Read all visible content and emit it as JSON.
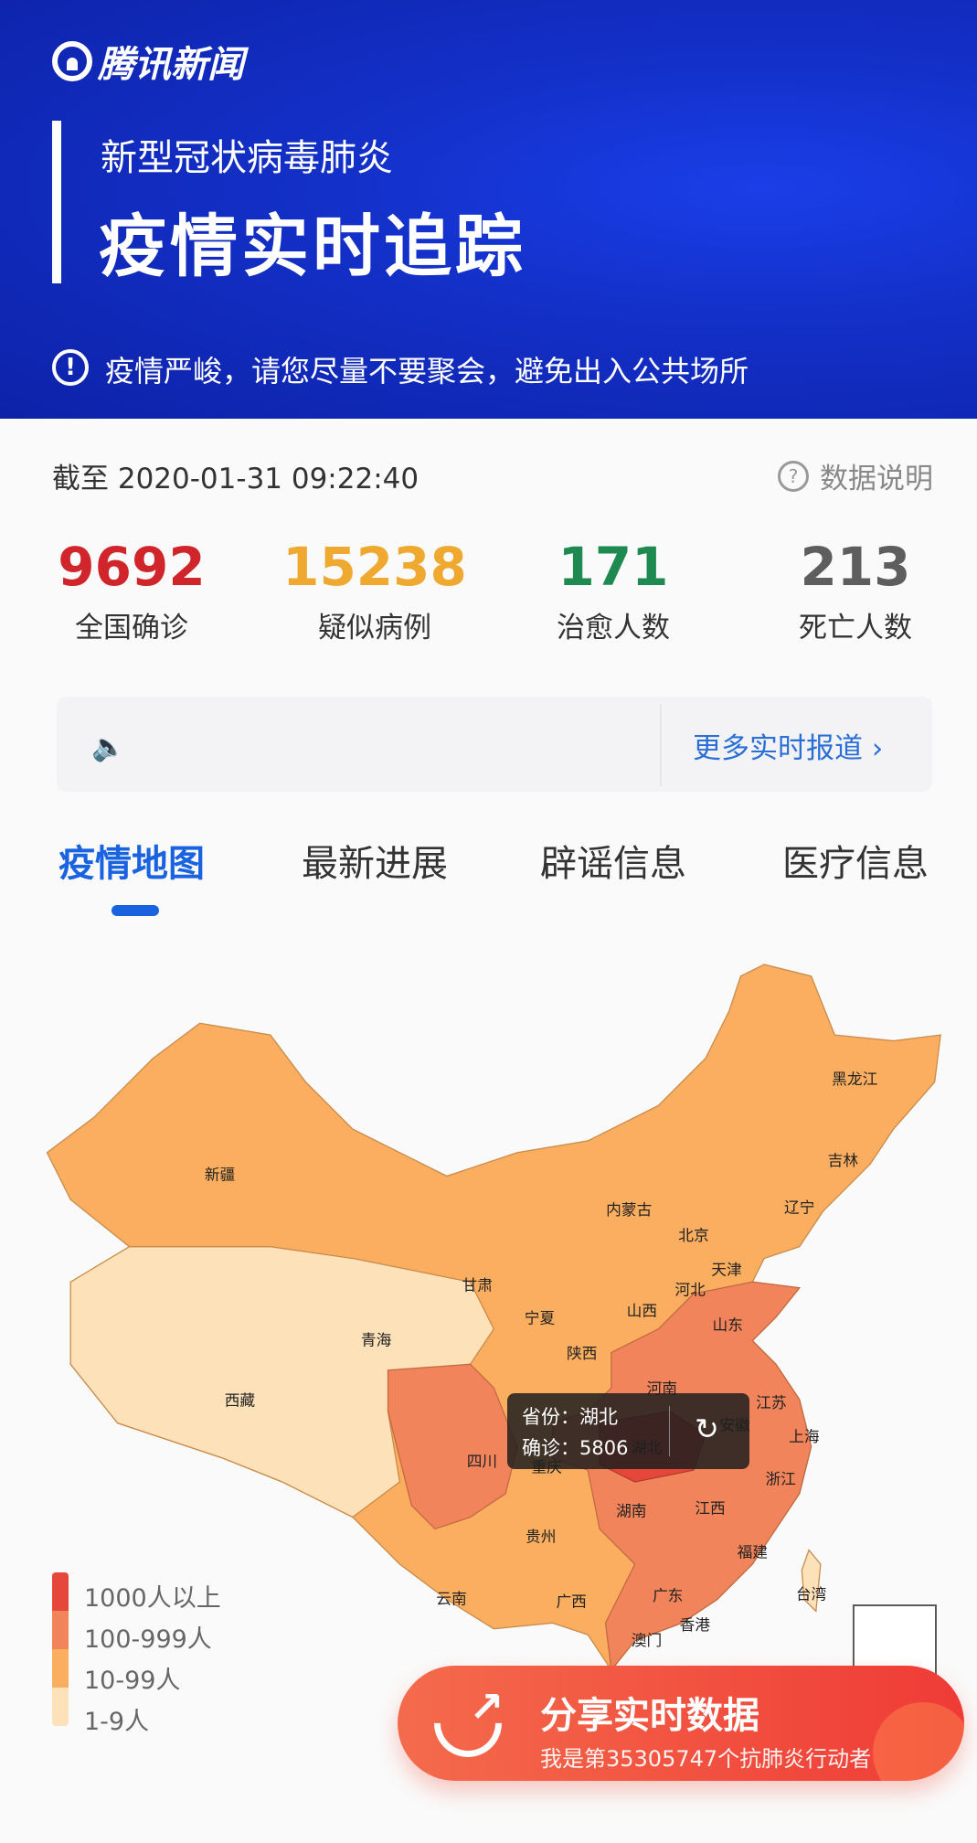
{
  "header": {
    "logo": "腾讯新闻",
    "subtitle": "新型冠状病毒肺炎",
    "title": "疫情实时追踪",
    "warning": "疫情严峻，请您尽量不要聚会，避免出入公共场所"
  },
  "summary": {
    "timestamp": "截至 2020-01-31 09:22:40",
    "help": "数据说明",
    "stats": [
      {
        "value": "9692",
        "label": "全国确诊",
        "color": "#d0262b"
      },
      {
        "value": "15238",
        "label": "疑似病例",
        "color": "#f0a930"
      },
      {
        "value": "171",
        "label": "治愈人数",
        "color": "#1e8a4f"
      },
      {
        "value": "213",
        "label": "死亡人数",
        "color": "#5e5e5e"
      }
    ]
  },
  "ticker": {
    "more": "更多实时报道 ›"
  },
  "tabs": [
    {
      "label": "疫情地图",
      "active": true
    },
    {
      "label": "最新进展"
    },
    {
      "label": "辟谣信息"
    },
    {
      "label": "医疗信息"
    }
  ],
  "map": {
    "provinces": [
      "黑龙江",
      "吉林",
      "辽宁",
      "内蒙古",
      "北京",
      "天津",
      "河北",
      "山东",
      "新疆",
      "甘肃",
      "宁夏",
      "山西",
      "陕西",
      "青海",
      "西藏",
      "河南",
      "江苏",
      "安徽",
      "上海",
      "湖北",
      "四川",
      "重庆",
      "浙江",
      "湖南",
      "江西",
      "贵州",
      "福建",
      "云南",
      "广西",
      "广东",
      "台湾",
      "香港",
      "澳门"
    ],
    "tooltip": {
      "province": "省份：湖北",
      "confirmed": "确诊：5806"
    },
    "legend": [
      {
        "label": "1000人以上",
        "color": "#e5483a"
      },
      {
        "label": "100-999人",
        "color": "#f1845a"
      },
      {
        "label": "10-99人",
        "color": "#fbae5f"
      },
      {
        "label": "1-9人",
        "color": "#fde1b8"
      }
    ]
  },
  "share": {
    "title": "分享实时数据",
    "subtitle": "我是第35305747个抗肺炎行动者"
  }
}
